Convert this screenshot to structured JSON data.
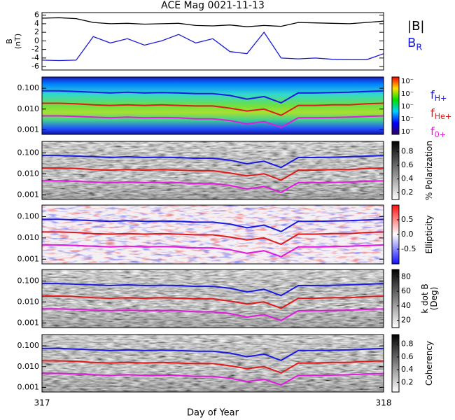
{
  "chart_data": [
    {
      "type": "line",
      "title": "ACE Mag 0021-11-13",
      "ylabel": [
        "B",
        "(nT)"
      ],
      "ylim": [
        -6.8,
        6.6
      ],
      "yticks": [
        -6,
        -4,
        -2,
        0,
        2,
        4,
        6
      ],
      "x": [
        317.0,
        317.05,
        317.1,
        317.15,
        317.2,
        317.25,
        317.3,
        317.35,
        317.4,
        317.45,
        317.5,
        317.55,
        317.6,
        317.65,
        317.7,
        317.75,
        317.8,
        317.85,
        317.9,
        317.95,
        318.0
      ],
      "series": [
        {
          "name": "|B|",
          "color": "#000000",
          "values": [
            5.3,
            5.4,
            5.2,
            4.3,
            4.0,
            4.1,
            3.9,
            4.0,
            4.1,
            3.6,
            3.5,
            3.7,
            3.3,
            3.6,
            3.4,
            4.3,
            4.2,
            4.1,
            4.0,
            4.3,
            4.6
          ]
        },
        {
          "name": "B",
          "name_sub": "R",
          "color": "#1a1ad8",
          "values": [
            -4.5,
            -4.6,
            -4.5,
            1.0,
            -0.5,
            0.5,
            -1.0,
            0.0,
            1.5,
            -0.5,
            0.5,
            -2.5,
            -3.0,
            2.0,
            -4.0,
            -4.2,
            -4.0,
            -4.3,
            -4.4,
            -4.4,
            -3.0
          ]
        }
      ]
    },
    {
      "type": "spectrogram",
      "colormap": "rainbow",
      "log_y": true,
      "ylim": [
        0.0006,
        0.35
      ],
      "yticks": [
        {
          "value": 0.1,
          "label": "0.100"
        },
        {
          "value": 0.01,
          "label": "0.010"
        },
        {
          "value": 0.001,
          "label": "0.001"
        }
      ],
      "colorbar_labels": [
        "10⁻",
        "10⁻",
        "10⁻",
        "10⁻",
        "10⁻"
      ]
    },
    {
      "type": "spectrogram",
      "colormap": "gray",
      "log_y": true,
      "ylim": [
        0.0006,
        0.35
      ],
      "yticks": [
        {
          "value": 0.1,
          "label": "0.100"
        },
        {
          "value": 0.01,
          "label": "0.010"
        },
        {
          "value": 0.001,
          "label": "0.001"
        }
      ],
      "clim": [
        0.1,
        0.95
      ],
      "cticks": [
        0.2,
        0.4,
        0.6,
        0.8
      ],
      "colorbar_title": [
        "% Polarization"
      ]
    },
    {
      "type": "spectrogram",
      "colormap": "red-white-blue",
      "log_y": true,
      "ylim": [
        0.0006,
        0.35
      ],
      "yticks": [
        {
          "value": 0.1,
          "label": "0.100"
        },
        {
          "value": 0.01,
          "label": "0.010"
        },
        {
          "value": 0.001,
          "label": "0.001"
        }
      ],
      "clim": [
        -1,
        1
      ],
      "cticks": [
        -0.5,
        {
          "value": 0,
          "label": "0.0"
        },
        0.5
      ],
      "colorbar_title": [
        "Ellipticity"
      ]
    },
    {
      "type": "spectrogram",
      "colormap": "gray",
      "log_y": true,
      "ylim": [
        0.0006,
        0.35
      ],
      "yticks": [
        {
          "value": 0.1,
          "label": "0.100"
        },
        {
          "value": 0.01,
          "label": "0.010"
        },
        {
          "value": 0.001,
          "label": "0.001"
        }
      ],
      "clim": [
        10,
        90
      ],
      "cticks": [
        20,
        40,
        60,
        80
      ],
      "colorbar_title": [
        "k dot B",
        "(Deg)"
      ]
    },
    {
      "type": "spectrogram",
      "colormap": "gray",
      "log_y": true,
      "ylim": [
        0.0006,
        0.35
      ],
      "yticks": [
        {
          "value": 0.1,
          "label": "0.100"
        },
        {
          "value": 0.01,
          "label": "0.010"
        },
        {
          "value": 0.001,
          "label": "0.001"
        }
      ],
      "clim": [
        0.05,
        0.95
      ],
      "cticks": [
        0.2,
        0.4,
        0.6,
        0.8
      ],
      "colorbar_title": [
        "Coherency"
      ],
      "xlim": [
        317,
        318
      ],
      "xticks": [
        317,
        318
      ],
      "xlabel": "Day of Year"
    }
  ],
  "gyrofrequency_lines": {
    "x": [
      317.0,
      317.05,
      317.1,
      317.15,
      317.2,
      317.25,
      317.3,
      317.35,
      317.4,
      317.45,
      317.5,
      317.55,
      317.6,
      317.65,
      317.7,
      317.75,
      317.8,
      317.85,
      317.9,
      317.95,
      318.0
    ],
    "series": [
      {
        "name": "f",
        "name_sub": "H+",
        "color": "#1a1ae0",
        "values": [
          0.075,
          0.075,
          0.07,
          0.065,
          0.06,
          0.065,
          0.06,
          0.062,
          0.06,
          0.055,
          0.055,
          0.045,
          0.03,
          0.04,
          0.02,
          0.06,
          0.06,
          0.062,
          0.065,
          0.07,
          0.075
        ]
      },
      {
        "name": "f",
        "name_sub": "He+",
        "color": "#e01a1a",
        "values": [
          0.019,
          0.019,
          0.018,
          0.016,
          0.015,
          0.016,
          0.015,
          0.016,
          0.015,
          0.014,
          0.014,
          0.011,
          0.008,
          0.01,
          0.005,
          0.015,
          0.015,
          0.016,
          0.016,
          0.018,
          0.019
        ]
      },
      {
        "name": "f",
        "name_sub": "0+",
        "color": "#e01ae0",
        "values": [
          0.0047,
          0.0047,
          0.0044,
          0.0041,
          0.0038,
          0.0041,
          0.0038,
          0.0039,
          0.0038,
          0.0034,
          0.0034,
          0.0028,
          0.0019,
          0.0025,
          0.0013,
          0.0038,
          0.0038,
          0.0039,
          0.0041,
          0.0044,
          0.0047
        ]
      }
    ]
  }
}
